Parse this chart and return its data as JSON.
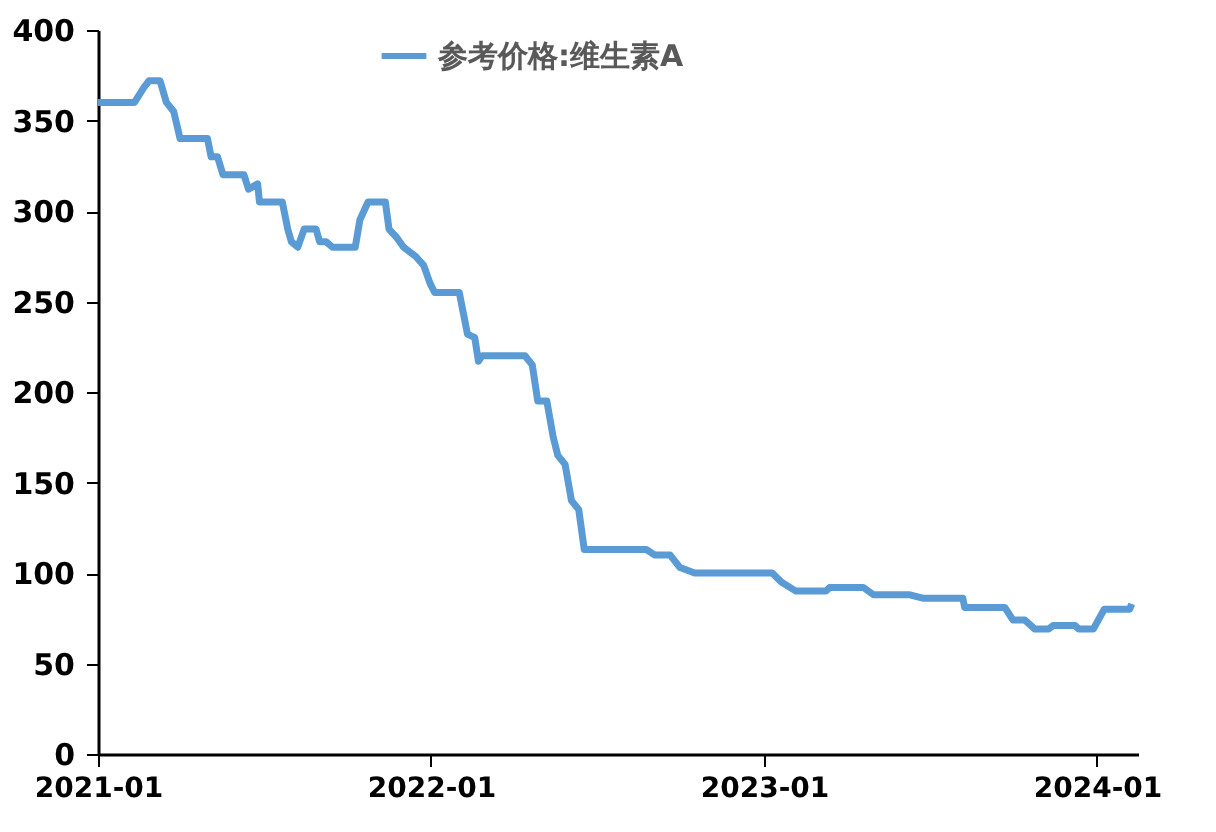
{
  "chart_data": {
    "type": "line",
    "legend": "top",
    "grid": false,
    "marker": "none",
    "line_style": "solid",
    "x": [
      "2021-01-01",
      "2021-02-10",
      "2021-02-20",
      "2021-02-26",
      "2021-03-10",
      "2021-03-17",
      "2021-03-25",
      "2021-04-01",
      "2021-05-01",
      "2021-05-05",
      "2021-05-12",
      "2021-05-18",
      "2021-06-10",
      "2021-06-15",
      "2021-06-25",
      "2021-06-27",
      "2021-07-22",
      "2021-07-28",
      "2021-08-01",
      "2021-08-08",
      "2021-08-15",
      "2021-08-28",
      "2021-09-01",
      "2021-09-08",
      "2021-09-15",
      "2021-10-10",
      "2021-10-15",
      "2021-10-24",
      "2021-11-12",
      "2021-11-16",
      "2021-11-25",
      "2021-12-02",
      "2021-12-15",
      "2021-12-24",
      "2021-12-31",
      "2022-01-05",
      "2022-02-01",
      "2022-02-10",
      "2022-02-18",
      "2022-02-22",
      "2022-02-26",
      "2022-04-14",
      "2022-04-22",
      "2022-04-28",
      "2022-05-08",
      "2022-05-15",
      "2022-05-20",
      "2022-05-28",
      "2022-06-04",
      "2022-06-12",
      "2022-06-18",
      "2022-08-25",
      "2022-09-03",
      "2022-09-20",
      "2022-10-01",
      "2022-10-17",
      "2023-01-10",
      "2023-01-20",
      "2023-02-05",
      "2023-03-10",
      "2023-03-14",
      "2023-04-20",
      "2023-05-01",
      "2023-06-09",
      "2023-06-25",
      "2023-08-07",
      "2023-08-09",
      "2023-09-22",
      "2023-10-01",
      "2023-10-14",
      "2023-10-25",
      "2023-11-09",
      "2023-11-14",
      "2023-12-08",
      "2023-12-12",
      "2023-12-28",
      "2024-01-09",
      "2024-02-06",
      "2024-02-08"
    ],
    "series": [
      {
        "name": "参考价格:维生素A",
        "color": "#5b9bd5",
        "values": [
          360,
          360,
          368,
          372,
          372,
          360,
          355,
          340,
          340,
          330,
          330,
          320,
          320,
          312,
          315,
          305,
          305,
          290,
          283,
          280,
          290,
          290,
          283,
          283,
          280,
          280,
          295,
          305,
          305,
          290,
          285,
          280,
          275,
          270,
          260,
          255,
          255,
          232,
          230,
          217,
          220,
          220,
          215,
          195,
          195,
          175,
          165,
          160,
          140,
          135,
          113,
          113,
          110,
          110,
          103,
          100,
          100,
          95,
          90,
          90,
          92,
          92,
          88,
          88,
          86,
          86,
          81,
          81,
          74,
          74,
          69,
          69,
          71,
          71,
          69,
          69,
          80,
          80,
          83
        ]
      }
    ],
    "xlim": [
      "2021-01-01",
      "2024-02-15"
    ],
    "xticks": [
      "2021-01",
      "2022-01",
      "2023-01",
      "2024-01"
    ],
    "ylim": [
      0,
      400
    ],
    "yticks": [
      0,
      50,
      100,
      150,
      200,
      250,
      300,
      350,
      400
    ]
  }
}
